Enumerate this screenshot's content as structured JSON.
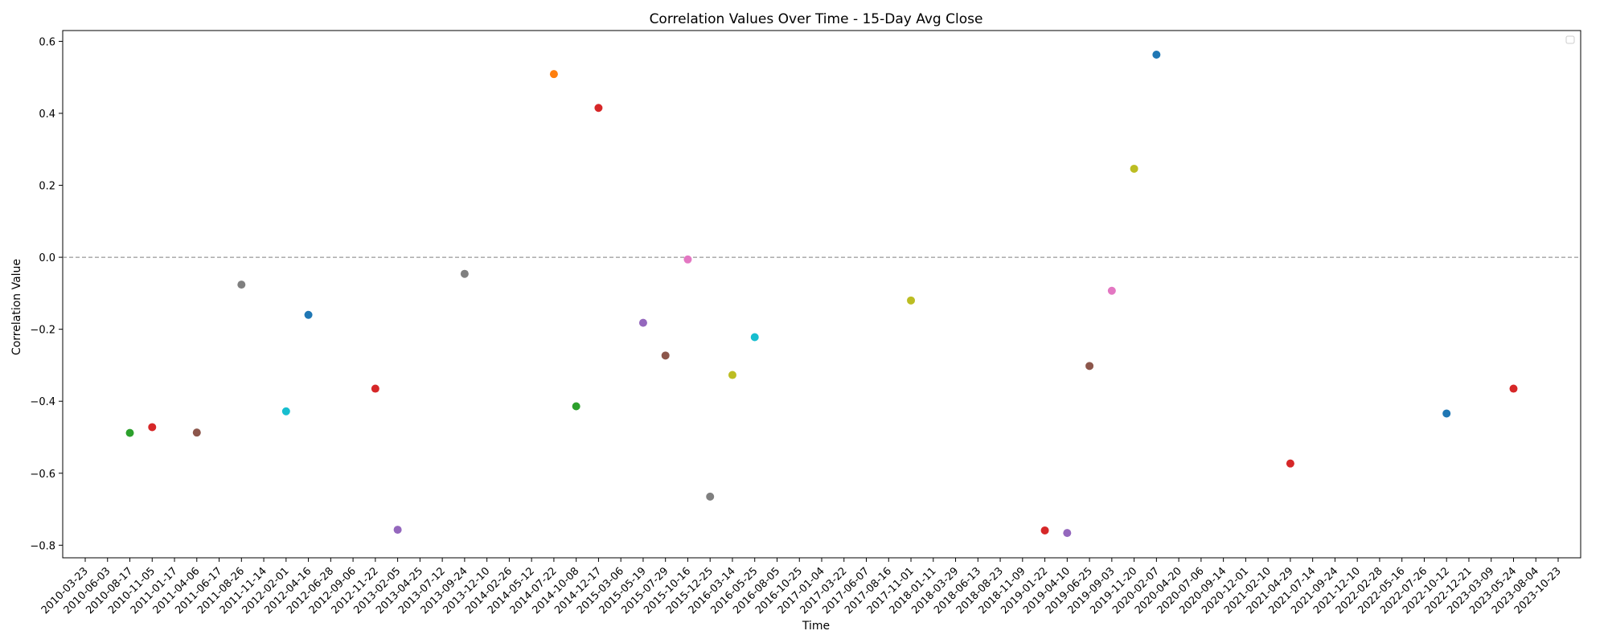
{
  "chart_data": {
    "type": "scatter",
    "title": "Correlation Values Over Time - 15-Day Avg Close",
    "xlabel": "Time",
    "ylabel": "Correlation Value",
    "ylim": [
      -0.835,
      0.63
    ],
    "yticks": [
      -0.8,
      -0.6,
      -0.4,
      -0.2,
      0.0,
      0.2,
      0.4,
      0.6
    ],
    "ytick_labels": [
      "−0.8",
      "−0.6",
      "−0.4",
      "−0.2",
      "0.0",
      "0.2",
      "0.4",
      "0.6"
    ],
    "reference_line": {
      "y": 0.0,
      "style": "dashed",
      "color": "#808080"
    },
    "legend": {
      "placement": "top-right",
      "entries": []
    },
    "grid": false,
    "xtick_labels": [
      "2010-03-23",
      "2010-06-03",
      "2010-08-17",
      "2010-11-05",
      "2011-01-17",
      "2011-04-06",
      "2011-06-17",
      "2011-08-26",
      "2011-11-14",
      "2012-02-01",
      "2012-04-16",
      "2012-06-28",
      "2012-09-06",
      "2012-11-22",
      "2013-02-05",
      "2013-04-25",
      "2013-07-12",
      "2013-09-24",
      "2013-12-10",
      "2014-02-26",
      "2014-05-12",
      "2014-07-22",
      "2014-10-08",
      "2014-12-17",
      "2015-03-06",
      "2015-05-19",
      "2015-07-29",
      "2015-10-16",
      "2015-12-25",
      "2016-03-14",
      "2016-05-25",
      "2016-08-05",
      "2016-10-25",
      "2017-01-04",
      "2017-03-22",
      "2017-06-07",
      "2017-08-16",
      "2017-11-01",
      "2018-01-11",
      "2018-03-29",
      "2018-06-13",
      "2018-08-23",
      "2018-11-09",
      "2019-01-22",
      "2019-04-10",
      "2019-06-25",
      "2019-09-03",
      "2019-11-20",
      "2020-02-07",
      "2020-04-20",
      "2020-07-06",
      "2020-09-14",
      "2020-12-01",
      "2021-02-10",
      "2021-04-29",
      "2021-07-14",
      "2021-09-24",
      "2021-12-10",
      "2022-02-28",
      "2022-05-16",
      "2022-07-26",
      "2022-10-12",
      "2022-12-21",
      "2023-03-09",
      "2023-05-24",
      "2023-08-04",
      "2023-10-23"
    ],
    "points": [
      {
        "x": "2010-08-17",
        "y": -0.488,
        "color": "#2ca02c"
      },
      {
        "x": "2010-11-05",
        "y": -0.472,
        "color": "#d62728"
      },
      {
        "x": "2011-04-06",
        "y": -0.487,
        "color": "#8c564b"
      },
      {
        "x": "2011-08-26",
        "y": -0.076,
        "color": "#7f7f7f"
      },
      {
        "x": "2012-02-01",
        "y": -0.428,
        "color": "#17becf"
      },
      {
        "x": "2012-04-16",
        "y": -0.16,
        "color": "#1f77b4"
      },
      {
        "x": "2012-11-22",
        "y": -0.365,
        "color": "#d62728"
      },
      {
        "x": "2013-02-05",
        "y": -0.757,
        "color": "#9467bd"
      },
      {
        "x": "2013-09-24",
        "y": -0.046,
        "color": "#7f7f7f"
      },
      {
        "x": "2014-07-22",
        "y": 0.509,
        "color": "#ff7f0e"
      },
      {
        "x": "2014-10-08",
        "y": -0.414,
        "color": "#2ca02c"
      },
      {
        "x": "2014-12-17",
        "y": 0.415,
        "color": "#d62728"
      },
      {
        "x": "2015-05-19",
        "y": -0.182,
        "color": "#9467bd"
      },
      {
        "x": "2015-07-29",
        "y": -0.273,
        "color": "#8c564b"
      },
      {
        "x": "2015-10-16",
        "y": -0.006,
        "color": "#e377c2"
      },
      {
        "x": "2015-12-25",
        "y": -0.665,
        "color": "#7f7f7f"
      },
      {
        "x": "2016-03-14",
        "y": -0.327,
        "color": "#bcbd22"
      },
      {
        "x": "2016-05-25",
        "y": -0.222,
        "color": "#17becf"
      },
      {
        "x": "2017-11-01",
        "y": -0.12,
        "color": "#bcbd22"
      },
      {
        "x": "2019-01-22",
        "y": -0.759,
        "color": "#d62728"
      },
      {
        "x": "2019-04-10",
        "y": -0.766,
        "color": "#9467bd"
      },
      {
        "x": "2019-06-25",
        "y": -0.302,
        "color": "#8c564b"
      },
      {
        "x": "2019-09-03",
        "y": -0.093,
        "color": "#e377c2"
      },
      {
        "x": "2019-11-20",
        "y": 0.246,
        "color": "#bcbd22"
      },
      {
        "x": "2020-02-07",
        "y": 0.563,
        "color": "#1f77b4"
      },
      {
        "x": "2021-04-29",
        "y": -0.573,
        "color": "#d62728"
      },
      {
        "x": "2022-10-12",
        "y": -0.434,
        "color": "#1f77b4"
      },
      {
        "x": "2023-05-24",
        "y": -0.365,
        "color": "#d62728"
      }
    ]
  }
}
